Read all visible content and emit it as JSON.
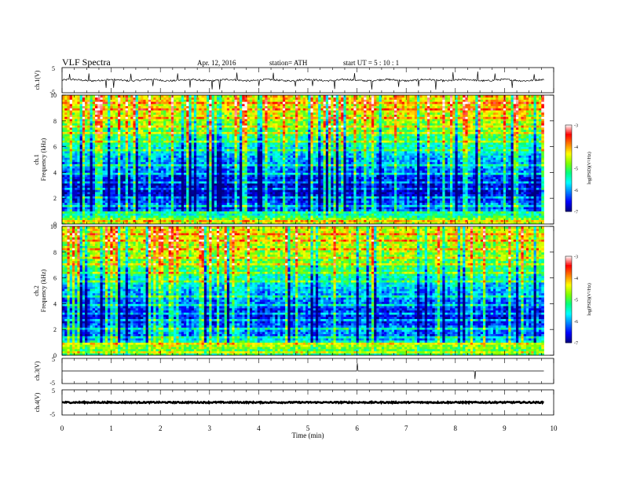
{
  "header": {
    "title": "VLF  Spectra",
    "date": "Apr. 12,  2016",
    "station": "station= ATH",
    "start": "start  UT  =   5  : 10 : 1"
  },
  "chart_data": [
    {
      "type": "line",
      "panel": "ch1-waveform",
      "ylabel": "ch.1(V)",
      "ylim": [
        -5,
        5
      ],
      "yticks": [
        "5",
        "-5"
      ],
      "xlim": [
        0,
        10
      ],
      "series": [
        {
          "x_range": [
            0,
            9.8
          ],
          "baseline": 0,
          "noise_amplitude": 0.35,
          "spike_times": [
            0.15,
            0.55,
            0.9,
            1.05,
            1.4,
            1.85,
            2.35,
            2.6,
            3.05,
            3.2,
            3.55,
            4.0,
            4.3,
            4.75,
            5.1,
            5.55,
            5.95,
            6.3,
            6.85,
            7.25,
            7.6,
            7.95,
            8.45,
            8.8,
            9.15,
            9.6
          ],
          "color": "#000000"
        }
      ]
    },
    {
      "type": "heatmap",
      "panel": "ch1-spectrogram",
      "ylabel": "Frequency  (kHz)",
      "channel_label": "ch.1",
      "ylim": [
        0,
        10
      ],
      "yticks": [
        "0",
        "2",
        "4",
        "6",
        "8",
        "10"
      ],
      "xlim": [
        0,
        10
      ],
      "data_x_range": [
        0,
        9.8
      ],
      "colorbar": {
        "label": "log(PSD)(V²/Hz)",
        "ticks": [
          "-3",
          "-4",
          "-5",
          "-6",
          "-7"
        ],
        "range": [
          -7,
          -3
        ],
        "colors": [
          "#000080",
          "#0000ff",
          "#0080ff",
          "#00ffff",
          "#00ff80",
          "#80ff00",
          "#ffff00",
          "#ff8000",
          "#ff0000",
          "#ffffff"
        ]
      },
      "frequency_profile": [
        {
          "f": 0.0,
          "level": -4.6
        },
        {
          "f": 0.4,
          "level": -4.8
        },
        {
          "f": 0.8,
          "level": -5.6
        },
        {
          "f": 1.2,
          "level": -6.4
        },
        {
          "f": 1.6,
          "level": -6.2
        },
        {
          "f": 2.0,
          "level": -6.6
        },
        {
          "f": 2.6,
          "level": -6.9
        },
        {
          "f": 3.2,
          "level": -6.7
        },
        {
          "f": 4.0,
          "level": -6.3
        },
        {
          "f": 5.0,
          "level": -6.0
        },
        {
          "f": 6.0,
          "level": -5.6
        },
        {
          "f": 7.0,
          "level": -5.1
        },
        {
          "f": 8.0,
          "level": -4.7
        },
        {
          "f": 9.0,
          "level": -4.4
        },
        {
          "f": 10.0,
          "level": -4.3
        }
      ]
    },
    {
      "type": "heatmap",
      "panel": "ch2-spectrogram",
      "ylabel": "Frequency  (kHz)",
      "channel_label": "ch.2",
      "ylim": [
        0,
        10
      ],
      "yticks": [
        "0",
        "2",
        "4",
        "6",
        "8",
        "10"
      ],
      "xlim": [
        0,
        10
      ],
      "data_x_range": [
        0,
        9.8
      ],
      "colorbar": {
        "label": "log(PSD)(V²/Hz)",
        "ticks": [
          "-3",
          "-4",
          "-5",
          "-6",
          "-7"
        ],
        "range": [
          -7,
          -3
        ],
        "colors": [
          "#000080",
          "#0000ff",
          "#0080ff",
          "#00ffff",
          "#00ff80",
          "#80ff00",
          "#ffff00",
          "#ff8000",
          "#ff0000",
          "#ffffff"
        ]
      },
      "frequency_profile": [
        {
          "f": 0.0,
          "level": -5.2
        },
        {
          "f": 0.4,
          "level": -5.0
        },
        {
          "f": 0.8,
          "level": -4.6
        },
        {
          "f": 1.2,
          "level": -5.8
        },
        {
          "f": 1.6,
          "level": -6.2
        },
        {
          "f": 2.0,
          "level": -6.0
        },
        {
          "f": 2.6,
          "level": -6.4
        },
        {
          "f": 3.2,
          "level": -6.6
        },
        {
          "f": 4.0,
          "level": -6.2
        },
        {
          "f": 5.0,
          "level": -5.9
        },
        {
          "f": 6.0,
          "level": -5.5
        },
        {
          "f": 7.0,
          "level": -5.0
        },
        {
          "f": 8.0,
          "level": -4.7
        },
        {
          "f": 9.0,
          "level": -4.5
        },
        {
          "f": 10.0,
          "level": -4.4
        }
      ]
    },
    {
      "type": "line",
      "panel": "ch3-waveform",
      "ylabel": "ch.3(V)",
      "ylim": [
        -5,
        5
      ],
      "yticks": [
        "5",
        "-5"
      ],
      "xlim": [
        0,
        10
      ],
      "series": [
        {
          "x_range": [
            0,
            9.8
          ],
          "baseline": 0,
          "noise_amplitude": 0.0,
          "spike_times": [
            6.0,
            8.4
          ],
          "color": "#000000"
        }
      ]
    },
    {
      "type": "line",
      "panel": "ch4-waveform",
      "ylabel": "ch.4(V)",
      "ylim": [
        -5,
        5
      ],
      "yticks": [
        "5",
        "-5"
      ],
      "xlim": [
        0,
        10
      ],
      "xlabel": "Time  (min)",
      "xticks": [
        "0",
        "1",
        "2",
        "3",
        "4",
        "5",
        "6",
        "7",
        "8",
        "9",
        "10"
      ],
      "series": [
        {
          "x_range": [
            0,
            9.8
          ],
          "baseline": 0,
          "noise_amplitude": 0.25,
          "spike_times": [],
          "color": "#000000"
        }
      ]
    }
  ]
}
